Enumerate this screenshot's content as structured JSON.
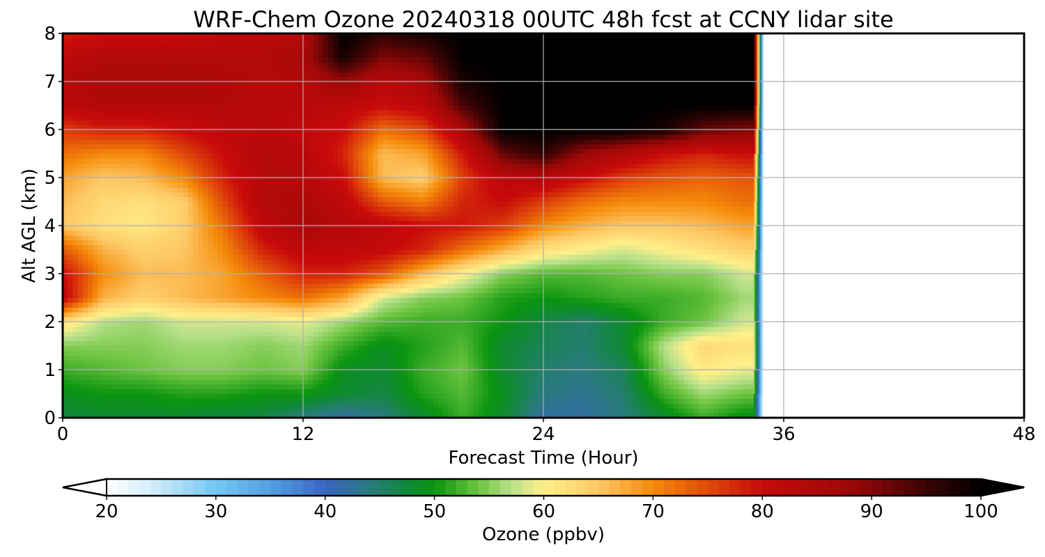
{
  "chart_data": {
    "type": "heatmap",
    "title": "WRF-Chem Ozone  20240318 00UTC 48h fcst at CCNY lidar site",
    "xlabel": "Forecast Time (Hour)",
    "ylabel": "Alt AGL (km)",
    "xlim": [
      0,
      48
    ],
    "ylim": [
      0,
      8
    ],
    "x_ticks": [
      "0",
      "12",
      "24",
      "36",
      "48"
    ],
    "y_ticks": [
      "0",
      "1",
      "2",
      "3",
      "4",
      "5",
      "6",
      "7",
      "8"
    ],
    "grid": true,
    "data_extent_hours": 34.5,
    "colorbar": {
      "label": "Ozone  (ppbv)",
      "min": 20,
      "max": 100,
      "extend": "both",
      "ticks": [
        "20",
        "30",
        "40",
        "50",
        "60",
        "70",
        "80",
        "90",
        "100"
      ],
      "stops": [
        {
          "v": 20,
          "c": "#ffffff"
        },
        {
          "v": 24,
          "c": "#d6eef9"
        },
        {
          "v": 30,
          "c": "#74c7f2"
        },
        {
          "v": 36,
          "c": "#4e95dc"
        },
        {
          "v": 40,
          "c": "#3a64c0"
        },
        {
          "v": 44,
          "c": "#2a7a80"
        },
        {
          "v": 48,
          "c": "#0e8a30"
        },
        {
          "v": 50,
          "c": "#0b9410"
        },
        {
          "v": 54,
          "c": "#6cc440"
        },
        {
          "v": 57,
          "c": "#b8e08a"
        },
        {
          "v": 60,
          "c": "#fff08a"
        },
        {
          "v": 65,
          "c": "#fdc865"
        },
        {
          "v": 70,
          "c": "#f58a0a"
        },
        {
          "v": 75,
          "c": "#e04a0a"
        },
        {
          "v": 80,
          "c": "#c80a0a"
        },
        {
          "v": 88,
          "c": "#9e0808"
        },
        {
          "v": 95,
          "c": "#3a0404"
        },
        {
          "v": 100,
          "c": "#000000"
        }
      ]
    },
    "hours": [
      0,
      2,
      4,
      6,
      8,
      10,
      12,
      14,
      16,
      18,
      20,
      22,
      24,
      26,
      28,
      30,
      32,
      34
    ],
    "altitudes_km": [
      0,
      0.5,
      1,
      1.5,
      2,
      2.5,
      3,
      3.5,
      4,
      4.5,
      5,
      5.5,
      6,
      6.5,
      7,
      7.5,
      8
    ],
    "ozone_ppbv": [
      [
        47,
        48,
        48,
        48,
        47,
        47,
        44,
        42,
        44,
        48,
        52,
        48,
        42,
        42,
        44,
        48,
        52,
        49
      ],
      [
        49,
        50,
        50,
        51,
        51,
        50,
        50,
        48,
        47,
        51,
        53,
        49,
        44,
        43,
        45,
        52,
        56,
        54
      ],
      [
        52,
        53,
        54,
        55,
        55,
        54,
        55,
        49,
        48,
        52,
        54,
        48,
        45,
        44,
        46,
        55,
        61,
        59
      ],
      [
        55,
        55,
        55,
        56,
        56,
        55,
        56,
        52,
        49,
        51,
        53,
        48,
        46,
        45,
        48,
        57,
        63,
        62
      ],
      [
        62,
        57,
        56,
        58,
        58,
        58,
        59,
        56,
        53,
        52,
        52,
        50,
        47,
        45,
        48,
        52,
        54,
        58
      ],
      [
        82,
        67,
        64,
        66,
        68,
        70,
        72,
        68,
        58,
        55,
        54,
        51,
        50,
        51,
        52,
        52,
        53,
        56
      ],
      [
        80,
        70,
        66,
        66,
        68,
        73,
        78,
        78,
        74,
        66,
        60,
        55,
        53,
        53,
        54,
        55,
        55,
        58
      ],
      [
        74,
        67,
        64,
        65,
        70,
        78,
        82,
        82,
        81,
        78,
        72,
        67,
        62,
        60,
        58,
        60,
        62,
        64
      ],
      [
        65,
        62,
        61,
        64,
        72,
        82,
        86,
        84,
        82,
        80,
        79,
        76,
        70,
        67,
        65,
        65,
        66,
        68
      ],
      [
        66,
        63,
        62,
        64,
        75,
        84,
        85,
        82,
        74,
        71,
        78,
        80,
        76,
        72,
        70,
        70,
        70,
        72
      ],
      [
        68,
        65,
        66,
        70,
        78,
        84,
        84,
        80,
        66,
        64,
        76,
        83,
        84,
        80,
        76,
        74,
        73,
        74
      ],
      [
        72,
        70,
        70,
        75,
        80,
        84,
        83,
        78,
        66,
        68,
        79,
        92,
        96,
        88,
        84,
        80,
        78,
        80
      ],
      [
        76,
        78,
        78,
        80,
        82,
        83,
        82,
        80,
        72,
        75,
        86,
        100,
        100,
        100,
        100,
        98,
        92,
        90
      ],
      [
        82,
        84,
        84,
        84,
        84,
        83,
        83,
        82,
        80,
        82,
        94,
        100,
        100,
        100,
        100,
        100,
        100,
        100
      ],
      [
        84,
        86,
        86,
        86,
        85,
        84,
        84,
        88,
        84,
        86,
        98,
        100,
        100,
        100,
        100,
        100,
        100,
        100
      ],
      [
        82,
        84,
        84,
        84,
        84,
        84,
        86,
        98,
        90,
        92,
        100,
        100,
        100,
        100,
        100,
        100,
        100,
        100
      ],
      [
        78,
        80,
        80,
        80,
        82,
        82,
        84,
        100,
        96,
        98,
        100,
        100,
        100,
        100,
        100,
        100,
        100,
        100
      ]
    ]
  }
}
